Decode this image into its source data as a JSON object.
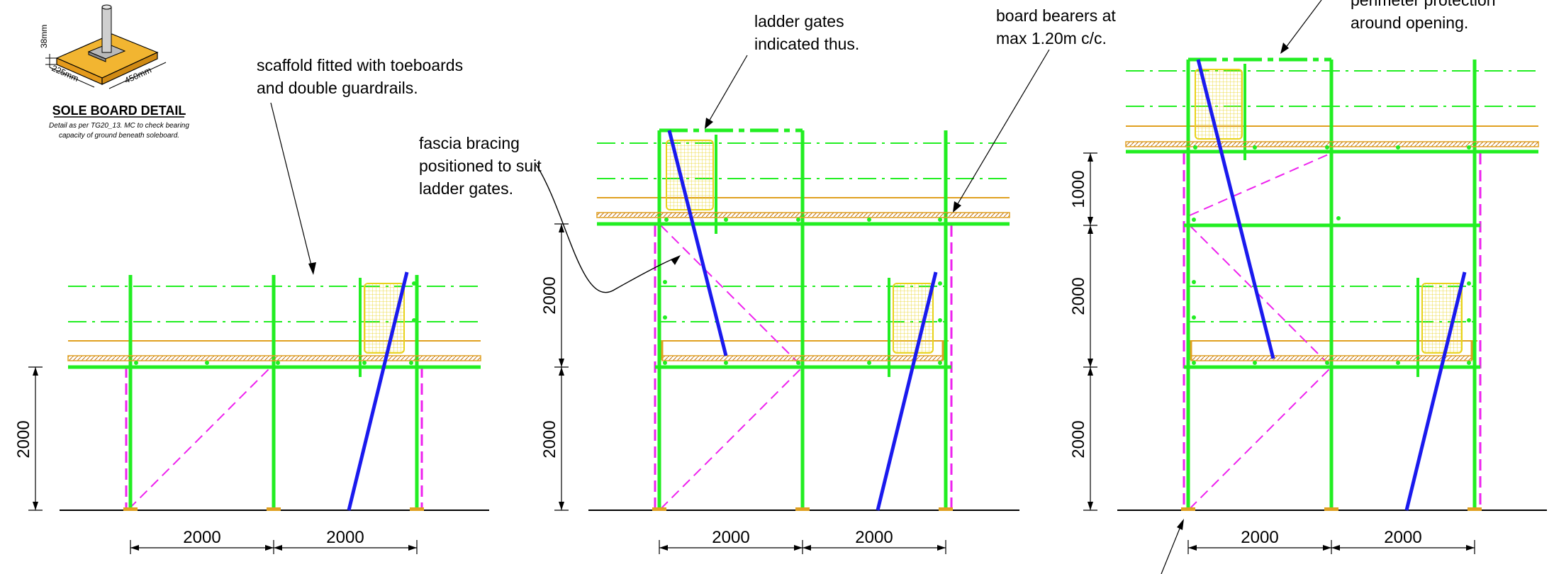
{
  "colors": {
    "standard": "#22ee22",
    "guardrail": "#22ee22",
    "brace": "#ee22ee",
    "ladder": "#1a1aee",
    "gate": "#e8d21a",
    "toeboard": "#e0a020",
    "ground": "#000000"
  },
  "sole_board": {
    "title": "SOLE BOARD DETAIL",
    "note_line1": "Detail as per TG20_13. MC to check bearing",
    "note_line2": "capacity of ground beneath soleboard.",
    "dim_height": "38mm",
    "dim_width": "225mm",
    "dim_length": "450mm"
  },
  "notes": {
    "toeboards_line1": "scaffold fitted with toeboards",
    "toeboards_line2": "and double guardrails.",
    "fascia_line1": "fascia bracing",
    "fascia_line2": "positioned to suit",
    "fascia_line3": "ladder gates.",
    "gates_line1": "ladder gates",
    "gates_line2": "indicated thus.",
    "bearers_line1": "board bearers at",
    "bearers_line2": "max 1.20m c/c.",
    "perimeter_line1": "perimeter protection",
    "perimeter_line2": "around opening."
  },
  "dimensions": {
    "e1_lift1": "2000",
    "e1_bay1": "2000",
    "e1_bay2": "2000",
    "e2_lift1": "2000",
    "e2_lift2": "2000",
    "e2_bay1": "2000",
    "e2_bay2": "2000",
    "e3_lift1": "2000",
    "e3_lift2": "2000",
    "e3_lift3": "1000",
    "e3_bay1": "2000",
    "e3_bay2": "2000"
  }
}
